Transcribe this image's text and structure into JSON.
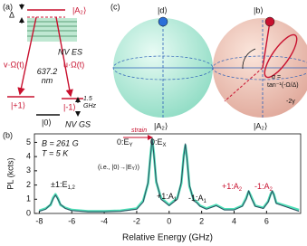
{
  "panel_a": {
    "label": "(a)",
    "delta": "Δ",
    "excited": "|A₂⟩",
    "es": "NV ES",
    "wavelength": "637.2\nnm",
    "left_drive": "v·Ω(t)",
    "right_drive": "u·Ω(t)",
    "plus": "|+1⟩",
    "minus": "|-1⟩",
    "zero": "|0⟩",
    "splitting": "1.5\nGHz",
    "gs": "NV GS"
  },
  "panel_c": {
    "label": "(c)",
    "dark": "|d⟩",
    "bright": "|b⟩",
    "left_pole": "|A₂⟩",
    "right_pole": "|A₂⟩",
    "alpha": "α =",
    "alpha_eq": "tan⁻¹(-Ω/Δ)",
    "gamma": "-2γ"
  },
  "chart_data": {
    "type": "line",
    "label": "(b)",
    "field": "B = 261 G",
    "temperature": "T = 5 K",
    "strain": "strain",
    "note": "(i.e., |0⟩→|E",
    "note_sub": "Y",
    "note_end": "⟩)",
    "xlabel": "Relative Energy (GHz)",
    "ylabel": "PL (kcts)",
    "x": [
      -8,
      -7.6,
      -7.3,
      -7.15,
      -7.0,
      -6.85,
      -6.7,
      -6.4,
      -6,
      -5,
      -4,
      -3,
      -2,
      -1.6,
      -1.3,
      -1.15,
      -1.05,
      -0.95,
      -0.8,
      -0.5,
      0,
      0.5,
      0.75,
      0.9,
      1.0,
      1.1,
      1.25,
      1.5,
      1.7,
      1.9,
      2.3,
      2.9,
      3.4,
      4,
      4.5,
      4.75,
      4.9,
      5.05,
      5.3,
      5.8,
      6.1,
      6.25,
      6.35,
      6.45,
      6.6,
      8
    ],
    "series": [
      {
        "color": "#4fe0b8",
        "values": [
          0.2,
          0.35,
          0.6,
          1.1,
          1.35,
          1.05,
          0.6,
          0.4,
          0.25,
          0.15,
          0.15,
          0.2,
          0.35,
          0.9,
          2.1,
          4.1,
          5.2,
          4.3,
          2.2,
          1.1,
          0.6,
          1.1,
          2.1,
          4.1,
          4.8,
          3.9,
          1.9,
          1.0,
          0.8,
          0.55,
          0.35,
          0.6,
          0.3,
          0.3,
          0.55,
          1.1,
          1.55,
          1.2,
          0.55,
          0.4,
          0.85,
          1.35,
          1.55,
          1.35,
          0.75,
          0.25
        ]
      },
      {
        "color": "#2e4a5e",
        "values": [
          0.15,
          0.3,
          0.65,
          1.0,
          1.3,
          1.0,
          0.65,
          0.35,
          0.2,
          0.12,
          0.12,
          0.15,
          0.3,
          0.8,
          2.2,
          4.0,
          5.3,
          4.2,
          2.3,
          1.0,
          0.55,
          1.0,
          2.2,
          4.0,
          4.9,
          3.8,
          2.0,
          0.9,
          0.75,
          0.5,
          0.3,
          0.55,
          0.25,
          0.25,
          0.5,
          1.0,
          1.6,
          1.1,
          0.5,
          0.35,
          0.8,
          1.3,
          1.6,
          1.3,
          0.7,
          0.15
        ]
      }
    ],
    "annotations": [
      {
        "main": "±1:E",
        "sub": "1,2",
        "color": "#111"
      },
      {
        "main": "0:E",
        "sub": "Y",
        "color": "#111"
      },
      {
        "main": "0:E",
        "sub": "X",
        "color": "#111"
      },
      {
        "main": "+1:A",
        "sub": "1",
        "color": "#111"
      },
      {
        "main": "-1:A",
        "sub": "1",
        "color": "#111"
      },
      {
        "main": "+1:A",
        "sub": "2",
        "color": "#c8102e"
      },
      {
        "main": "-1:A",
        "sub": "2",
        "color": "#c8102e"
      }
    ],
    "xlim": [
      -8.3,
      8.1
    ],
    "ylim": [
      0,
      5.6
    ],
    "xticks": [
      -8,
      -6,
      -4,
      -2,
      0,
      2,
      4,
      6
    ],
    "yticks": [
      0,
      1,
      2,
      3,
      4,
      5
    ]
  }
}
